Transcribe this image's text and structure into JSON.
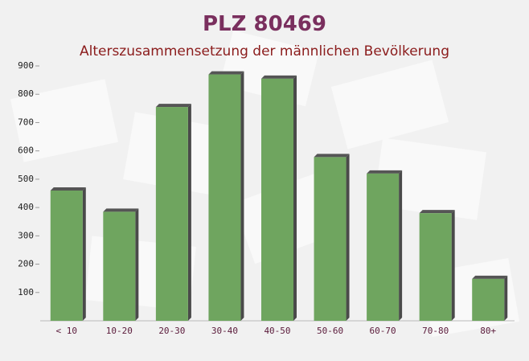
{
  "chart_data": {
    "type": "bar",
    "title": "PLZ 80469",
    "subtitle": "Alterszusammensetzung der männlichen Bevölkerung",
    "categories": [
      "< 10",
      "10-20",
      "20-30",
      "30-40",
      "40-50",
      "50-60",
      "60-70",
      "70-80",
      "80+"
    ],
    "values": [
      460,
      385,
      755,
      870,
      855,
      578,
      520,
      380,
      148
    ],
    "color": "#6fa55f",
    "ylim": [
      0,
      900
    ],
    "yticks": [
      100,
      200,
      300,
      400,
      500,
      600,
      700,
      800,
      900
    ]
  }
}
